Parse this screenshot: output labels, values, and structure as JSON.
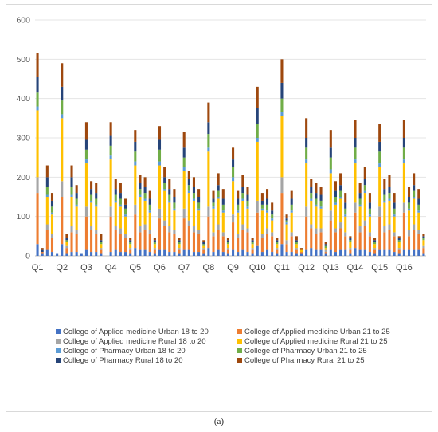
{
  "caption": "(a)",
  "chart_data": {
    "type": "bar",
    "stacked": true,
    "ylim": [
      0,
      600
    ],
    "yticks": [
      0,
      100,
      200,
      300,
      400,
      500,
      600
    ],
    "gridlines": true,
    "legend_position": "bottom",
    "group_labels": [
      "Q1",
      "Q2",
      "Q3",
      "Q4",
      "Q5",
      "Q6",
      "Q7",
      "Q8",
      "Q9",
      "Q10",
      "Q11",
      "Q12",
      "Q13",
      "Q14",
      "Q15",
      "Q16"
    ],
    "bars_per_group": 5,
    "series": [
      {
        "name": "College of Applied medicine Urban 18 to 20",
        "color": "#4472c4",
        "values": [
          30,
          5,
          15,
          10,
          5,
          30,
          5,
          10,
          10,
          5,
          15,
          10,
          10,
          5,
          0,
          10,
          15,
          10,
          10,
          5,
          20,
          15,
          15,
          10,
          5,
          15,
          15,
          10,
          10,
          5,
          15,
          15,
          10,
          10,
          5,
          20,
          10,
          15,
          10,
          5,
          15,
          10,
          15,
          10,
          5,
          25,
          10,
          15,
          10,
          5,
          30,
          10,
          10,
          5,
          5,
          15,
          20,
          15,
          15,
          5,
          15,
          10,
          15,
          15,
          5,
          20,
          15,
          15,
          10,
          5,
          15,
          15,
          15,
          10,
          5,
          15,
          15,
          15,
          15,
          5
        ]
      },
      {
        "name": "College of Applied medicine Urban 21 to 25",
        "color": "#ed7d31",
        "values": [
          130,
          5,
          50,
          35,
          0,
          120,
          15,
          50,
          45,
          0,
          85,
          55,
          45,
          10,
          0,
          90,
          50,
          45,
          35,
          10,
          85,
          45,
          50,
          45,
          10,
          80,
          60,
          50,
          45,
          10,
          80,
          60,
          50,
          45,
          10,
          80,
          40,
          50,
          40,
          10,
          70,
          35,
          50,
          50,
          10,
          85,
          35,
          40,
          40,
          10,
          130,
          20,
          40,
          10,
          5,
          85,
          50,
          40,
          45,
          5,
          75,
          50,
          55,
          35,
          10,
          90,
          45,
          60,
          40,
          10,
          85,
          45,
          50,
          40,
          10,
          95,
          35,
          50,
          40,
          15
        ]
      },
      {
        "name": "College of Applied medicine Rural 18 to 20",
        "color": "#a5a5a5",
        "values": [
          40,
          0,
          15,
          10,
          0,
          40,
          5,
          15,
          10,
          0,
          25,
          10,
          10,
          5,
          0,
          25,
          10,
          15,
          10,
          5,
          25,
          15,
          15,
          10,
          5,
          25,
          15,
          15,
          10,
          5,
          25,
          15,
          15,
          10,
          5,
          25,
          10,
          15,
          10,
          5,
          20,
          10,
          15,
          10,
          5,
          30,
          10,
          15,
          10,
          5,
          40,
          10,
          10,
          5,
          0,
          25,
          10,
          15,
          10,
          5,
          25,
          10,
          15,
          10,
          5,
          25,
          15,
          15,
          10,
          5,
          25,
          15,
          15,
          10,
          5,
          25,
          15,
          15,
          10,
          5
        ]
      },
      {
        "name": "College of Applied medicine Rural 21 to 25",
        "color": "#ffc000",
        "values": [
          170,
          0,
          70,
          50,
          0,
          160,
          10,
          75,
          60,
          0,
          110,
          60,
          60,
          10,
          0,
          120,
          60,
          55,
          45,
          10,
          100,
          75,
          60,
          45,
          10,
          110,
          75,
          60,
          50,
          10,
          95,
          70,
          65,
          50,
          5,
          140,
          60,
          65,
          50,
          10,
          85,
          55,
          60,
          50,
          10,
          150,
          60,
          40,
          30,
          10,
          155,
          40,
          50,
          10,
          5,
          110,
          60,
          55,
          50,
          5,
          95,
          60,
          60,
          40,
          15,
          100,
          50,
          70,
          40,
          10,
          100,
          60,
          60,
          40,
          15,
          100,
          50,
          65,
          45,
          15
        ]
      },
      {
        "name": "College of Pharmacy Urban 18 to 20",
        "color": "#5b9bd5",
        "values": [
          10,
          0,
          5,
          5,
          0,
          10,
          0,
          5,
          5,
          0,
          10,
          5,
          5,
          0,
          0,
          10,
          5,
          5,
          5,
          0,
          10,
          5,
          5,
          5,
          0,
          10,
          5,
          5,
          5,
          0,
          10,
          5,
          5,
          5,
          0,
          10,
          5,
          5,
          5,
          0,
          10,
          5,
          5,
          5,
          0,
          10,
          5,
          5,
          5,
          0,
          10,
          5,
          5,
          0,
          0,
          10,
          5,
          5,
          5,
          0,
          10,
          5,
          5,
          5,
          0,
          10,
          5,
          5,
          5,
          0,
          10,
          5,
          5,
          5,
          0,
          10,
          5,
          5,
          5,
          0
        ]
      },
      {
        "name": "College of Pharmacy Urban 21 to 25",
        "color": "#70ad47",
        "values": [
          35,
          0,
          20,
          15,
          0,
          35,
          5,
          20,
          15,
          0,
          25,
          15,
          15,
          5,
          0,
          25,
          15,
          15,
          15,
          5,
          25,
          15,
          15,
          15,
          5,
          30,
          15,
          15,
          15,
          5,
          25,
          15,
          15,
          15,
          5,
          35,
          10,
          15,
          15,
          5,
          25,
          15,
          15,
          15,
          5,
          35,
          10,
          15,
          10,
          5,
          35,
          5,
          15,
          5,
          0,
          30,
          15,
          15,
          15,
          5,
          30,
          15,
          15,
          15,
          5,
          30,
          15,
          15,
          15,
          5,
          30,
          15,
          15,
          15,
          5,
          30,
          15,
          15,
          15,
          5
        ]
      },
      {
        "name": "College of Pharmacy Rural 18 to 20",
        "color": "#264478",
        "values": [
          40,
          5,
          25,
          15,
          0,
          35,
          5,
          25,
          15,
          0,
          25,
          15,
          15,
          5,
          0,
          25,
          15,
          15,
          10,
          5,
          25,
          15,
          15,
          15,
          5,
          25,
          15,
          15,
          15,
          5,
          25,
          15,
          15,
          15,
          5,
          30,
          10,
          15,
          15,
          5,
          20,
          15,
          15,
          15,
          5,
          40,
          10,
          15,
          10,
          5,
          40,
          5,
          15,
          5,
          0,
          25,
          15,
          15,
          15,
          5,
          25,
          15,
          15,
          15,
          5,
          25,
          15,
          15,
          15,
          5,
          25,
          15,
          15,
          15,
          5,
          25,
          15,
          15,
          15,
          5
        ]
      },
      {
        "name": "College of Pharmacy Rural 21 to 25",
        "color": "#9e480e",
        "values": [
          60,
          5,
          30,
          20,
          0,
          60,
          10,
          30,
          20,
          0,
          45,
          20,
          25,
          15,
          0,
          35,
          25,
          25,
          15,
          5,
          30,
          20,
          25,
          20,
          5,
          35,
          25,
          25,
          20,
          5,
          40,
          20,
          25,
          20,
          5,
          50,
          20,
          30,
          25,
          5,
          30,
          20,
          30,
          20,
          5,
          55,
          20,
          25,
          20,
          5,
          60,
          10,
          20,
          10,
          5,
          50,
          20,
          25,
          20,
          5,
          45,
          25,
          30,
          25,
          5,
          45,
          25,
          30,
          25,
          5,
          45,
          25,
          30,
          25,
          5,
          45,
          25,
          30,
          25,
          5
        ]
      }
    ]
  }
}
